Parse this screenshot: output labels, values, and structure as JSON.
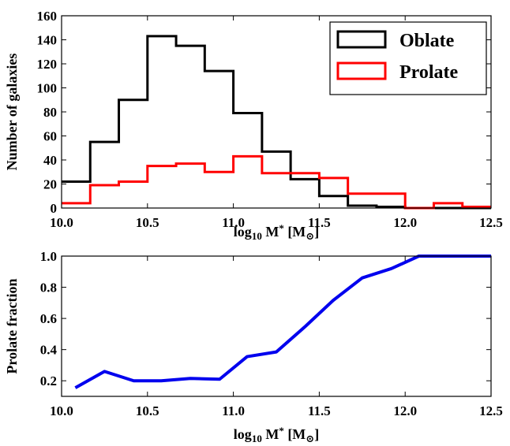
{
  "chart_data": [
    {
      "type": "step",
      "xlabel": {
        "prefix": "log",
        "sub": "10",
        "mid": " M",
        "sup": "*",
        "suffix": " [M",
        "suffix_sub": "⊙",
        "end": "]"
      },
      "ylabel": "Number of galaxies",
      "xlim": [
        10.0,
        12.5
      ],
      "ylim": [
        0,
        160
      ],
      "xticks": [
        "10.0",
        "10.5",
        "11.0",
        "11.5",
        "12.0",
        "12.5"
      ],
      "yticks": [
        "0",
        "20",
        "40",
        "60",
        "80",
        "100",
        "120",
        "140",
        "160"
      ],
      "bin_edges": [
        10.0,
        10.1667,
        10.3333,
        10.5,
        10.6667,
        10.8333,
        11.0,
        11.1667,
        11.3333,
        11.5,
        11.6667,
        11.8333,
        12.0,
        12.1667,
        12.3333,
        12.5
      ],
      "series": [
        {
          "name": "Oblate",
          "color": "#000000",
          "values": [
            22,
            55,
            90,
            143,
            135,
            114,
            79,
            47,
            24,
            10,
            2,
            1,
            0,
            0,
            0
          ]
        },
        {
          "name": "Prolate",
          "color": "#ff0000",
          "values": [
            4,
            19,
            22,
            35,
            37,
            30,
            43,
            29,
            29,
            25,
            12,
            12,
            0,
            4,
            1
          ]
        }
      ],
      "legend": {
        "location": "top-right"
      }
    },
    {
      "type": "line",
      "xlabel": {
        "prefix": "log",
        "sub": "10",
        "mid": " M",
        "sup": "*",
        "suffix": " [M",
        "suffix_sub": "⊙",
        "end": "]"
      },
      "ylabel": "Prolate fraction",
      "xlim": [
        10.0,
        12.5
      ],
      "ylim": [
        0.1,
        1.0
      ],
      "xticks": [
        "10.0",
        "10.5",
        "11.0",
        "11.5",
        "12.0",
        "12.5"
      ],
      "yticks": [
        "0.2",
        "0.4",
        "0.6",
        "0.8",
        "1.0"
      ],
      "series": [
        {
          "color": "#0000ee",
          "x": [
            10.08,
            10.25,
            10.42,
            10.58,
            10.75,
            10.92,
            11.08,
            11.25,
            11.42,
            11.58,
            11.75,
            11.92,
            12.08,
            12.25,
            12.42,
            12.5
          ],
          "y": [
            0.155,
            0.26,
            0.2,
            0.2,
            0.215,
            0.21,
            0.355,
            0.385,
            0.55,
            0.715,
            0.86,
            0.92,
            1.0,
            1.0,
            1.0,
            1.0
          ]
        }
      ]
    }
  ]
}
